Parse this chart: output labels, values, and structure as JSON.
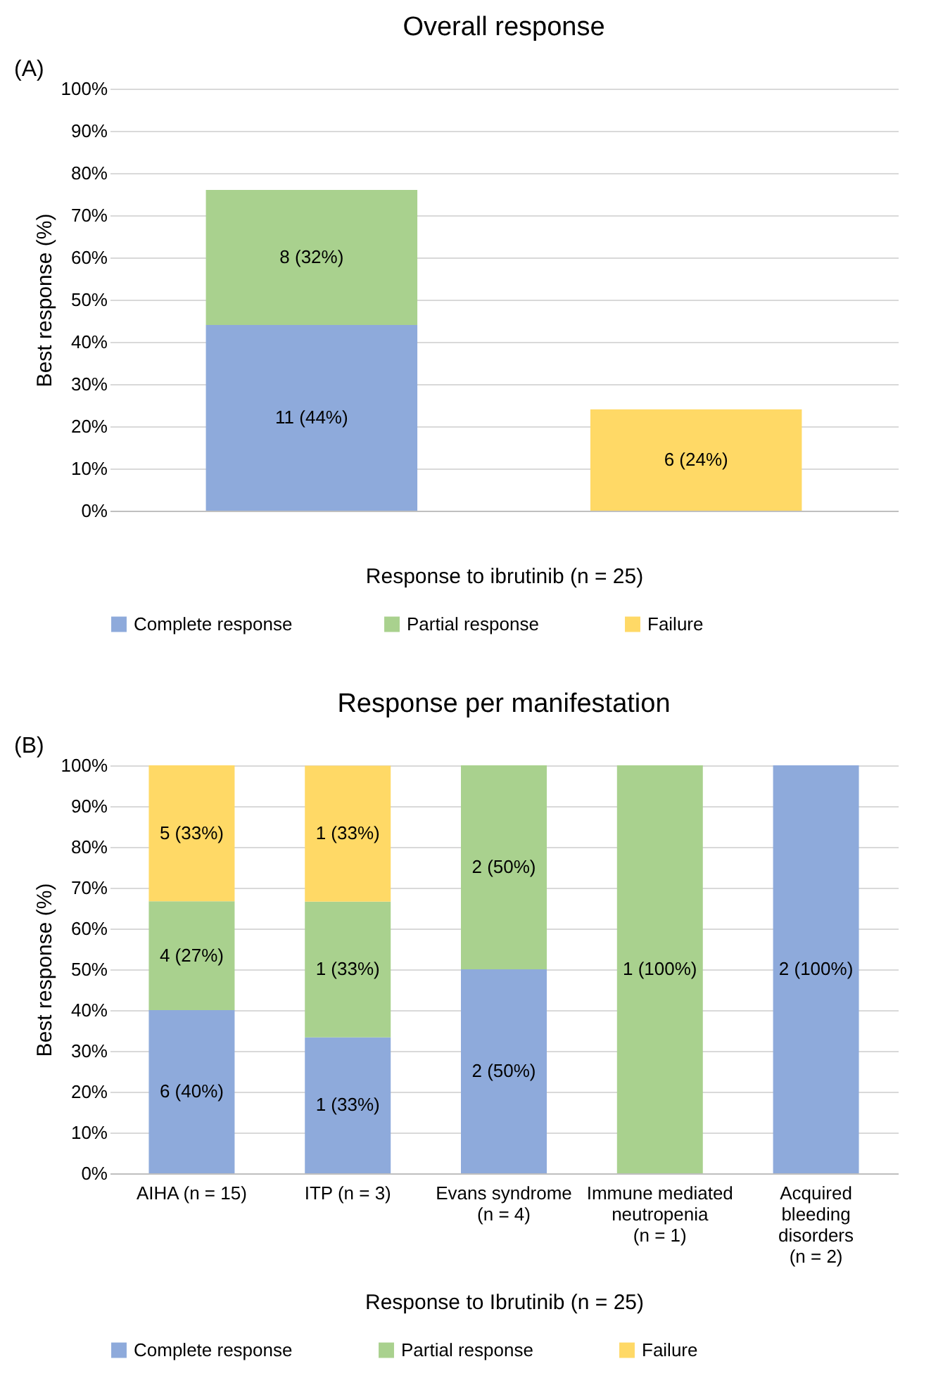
{
  "chart_data": [
    {
      "type": "bar",
      "stacked": true,
      "title": "Overall response",
      "annotations": [
        "(A)"
      ],
      "xlabel": "Response to ibrutinib (n = 25)",
      "ylabel": "Best response (%)",
      "categories": [
        null,
        null
      ],
      "series": [
        {
          "name": "Complete  response",
          "color": "#8eaadb",
          "values": [
            44,
            null
          ],
          "value_labels": [
            "11 (44%)",
            null
          ]
        },
        {
          "name": "Partial response",
          "color": "#a9d18e",
          "values": [
            32,
            null
          ],
          "value_labels": [
            "8 (32%)",
            null
          ]
        },
        {
          "name": "Failure",
          "color": "#ffd966",
          "values": [
            null,
            24
          ],
          "value_labels": [
            null,
            "6 (24%)"
          ]
        }
      ],
      "ylim": [
        0,
        100
      ],
      "yticks": [
        {
          "value": 0,
          "label": "0%"
        },
        {
          "value": 10,
          "label": "10%"
        },
        {
          "value": 20,
          "label": "20%"
        },
        {
          "value": 30,
          "label": "30%"
        },
        {
          "value": 40,
          "label": "40%"
        },
        {
          "value": 50,
          "label": "50%"
        },
        {
          "value": 60,
          "label": "60%"
        },
        {
          "value": 70,
          "label": "70%"
        },
        {
          "value": 80,
          "label": "80%"
        },
        {
          "value": 90,
          "label": "90%"
        },
        {
          "value": 100,
          "label": "100%"
        }
      ],
      "grid": "y",
      "legend": "bottom"
    },
    {
      "type": "bar",
      "stacked": true,
      "title": "Response per manifestation",
      "annotations": [
        "(B)"
      ],
      "xlabel": "Response to Ibrutinib (n = 25)",
      "ylabel": "Best response (%)",
      "categories": [
        "AIHA (n = 15)",
        "ITP (n = 3)",
        "Evans syndrome (n = 4)",
        "Immune mediated neutropenia (n = 1)",
        "Acquired bleeding disorders (n = 2)"
      ],
      "series": [
        {
          "name": "Complete response",
          "color": "#8eaadb",
          "values": [
            40,
            33.3,
            50,
            null,
            100
          ],
          "value_labels": [
            "6 (40%)",
            "1 (33%)",
            "2 (50%)",
            null,
            "2 (100%)"
          ]
        },
        {
          "name": "Partial response",
          "color": "#a9d18e",
          "values": [
            26.7,
            33.3,
            50,
            100,
            null
          ],
          "value_labels": [
            "4 (27%)",
            "1 (33%)",
            "2 (50%)",
            "1 (100%)",
            null
          ]
        },
        {
          "name": "Failure",
          "color": "#ffd966",
          "values": [
            33.3,
            33.3,
            null,
            null,
            null
          ],
          "value_labels": [
            "5 (33%)",
            "1 (33%)",
            null,
            null,
            null
          ]
        }
      ],
      "ylim": [
        0,
        100
      ],
      "yticks": [
        {
          "value": 0,
          "label": "0%"
        },
        {
          "value": 10,
          "label": "10%"
        },
        {
          "value": 20,
          "label": "20%"
        },
        {
          "value": 30,
          "label": "30%"
        },
        {
          "value": 40,
          "label": "40%"
        },
        {
          "value": 50,
          "label": "50%"
        },
        {
          "value": 60,
          "label": "60%"
        },
        {
          "value": 70,
          "label": "70%"
        },
        {
          "value": 80,
          "label": "80%"
        },
        {
          "value": 90,
          "label": "90%"
        },
        {
          "value": 100,
          "label": "100%"
        }
      ],
      "grid": "y",
      "legend": "bottom"
    }
  ]
}
